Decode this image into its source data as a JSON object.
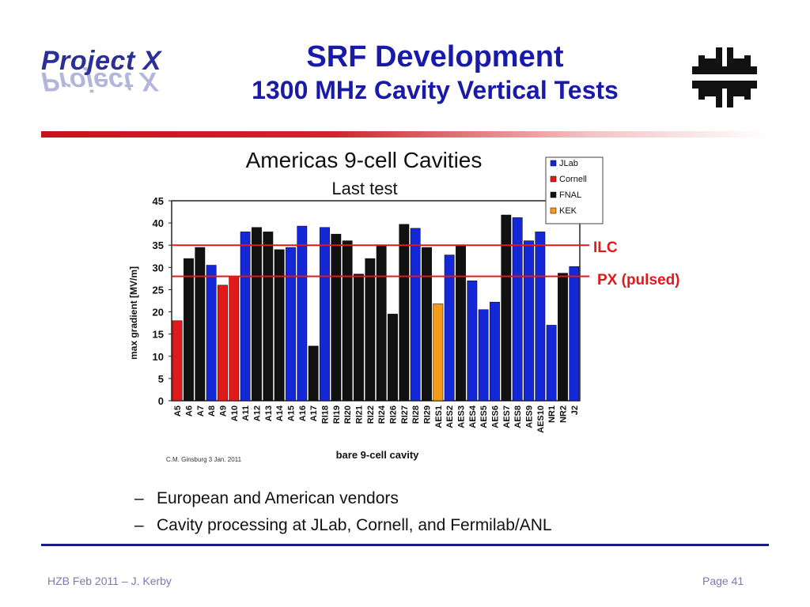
{
  "header": {
    "logo_text": "Project X",
    "title": "SRF Development",
    "subtitle": "1300 MHz Cavity Vertical Tests"
  },
  "colors": {
    "title": "#1a1aa8",
    "JLab": "#1428d8",
    "Cornell": "#e01a1a",
    "FNAL": "#111111",
    "KEK": "#f29a1a",
    "reference_line": "#e01a1a"
  },
  "chart_data": {
    "type": "bar",
    "title": "Americas 9-cell Cavities",
    "subtitle": "Last test",
    "xlabel": "bare 9-cell cavity",
    "ylabel": "max gradient [MV/m]",
    "ylim": [
      0,
      45
    ],
    "yticks": [
      0,
      5,
      10,
      15,
      20,
      25,
      30,
      35,
      40,
      45
    ],
    "credit": "C.M. Ginsburg 3 Jan. 2011",
    "legend": [
      "JLab",
      "Cornell",
      "FNAL",
      "KEK"
    ],
    "legend_position": "top-right",
    "categories": [
      "A5",
      "A6",
      "A7",
      "A8",
      "A9",
      "A10",
      "A11",
      "A12",
      "A13",
      "A14",
      "A15",
      "A16",
      "A17",
      "RI18",
      "RI19",
      "RI20",
      "RI21",
      "RI22",
      "RI24",
      "RI26",
      "RI27",
      "RI28",
      "RI29",
      "AES1",
      "AES2",
      "AES3",
      "AES4",
      "AES5",
      "AES6",
      "AES7",
      "AES8",
      "AES9",
      "AES10",
      "NR1",
      "NR2",
      "J2"
    ],
    "values": [
      18,
      32,
      34.5,
      30.5,
      26,
      28,
      38,
      39,
      38,
      34,
      34.5,
      39.3,
      12.3,
      39,
      37.5,
      36,
      28.5,
      32,
      34.8,
      19.5,
      39.7,
      38.8,
      34.5,
      21.8,
      32.8,
      35,
      27,
      20.5,
      22.2,
      41.8,
      41.2,
      36,
      38,
      17,
      28.7,
      30.2
    ],
    "groups": [
      "Cornell",
      "FNAL",
      "FNAL",
      "JLab",
      "Cornell",
      "Cornell",
      "JLab",
      "FNAL",
      "FNAL",
      "FNAL",
      "JLab",
      "JLab",
      "FNAL",
      "JLab",
      "FNAL",
      "FNAL",
      "FNAL",
      "FNAL",
      "FNAL",
      "FNAL",
      "FNAL",
      "JLab",
      "FNAL",
      "KEK",
      "JLab",
      "FNAL",
      "JLab",
      "JLab",
      "JLab",
      "FNAL",
      "JLab",
      "JLab",
      "JLab",
      "JLab",
      "FNAL",
      "JLab"
    ],
    "reference_lines": [
      {
        "label": "ILC",
        "value": 35
      },
      {
        "label": "PX (pulsed)",
        "value": 28
      }
    ]
  },
  "bullets": [
    "European and American vendors",
    "Cavity processing at JLab, Cornell, and Fermilab/ANL"
  ],
  "bullet_marker": "–",
  "footer": {
    "left": "HZB Feb 2011 – J. Kerby",
    "right": "Page 41"
  }
}
